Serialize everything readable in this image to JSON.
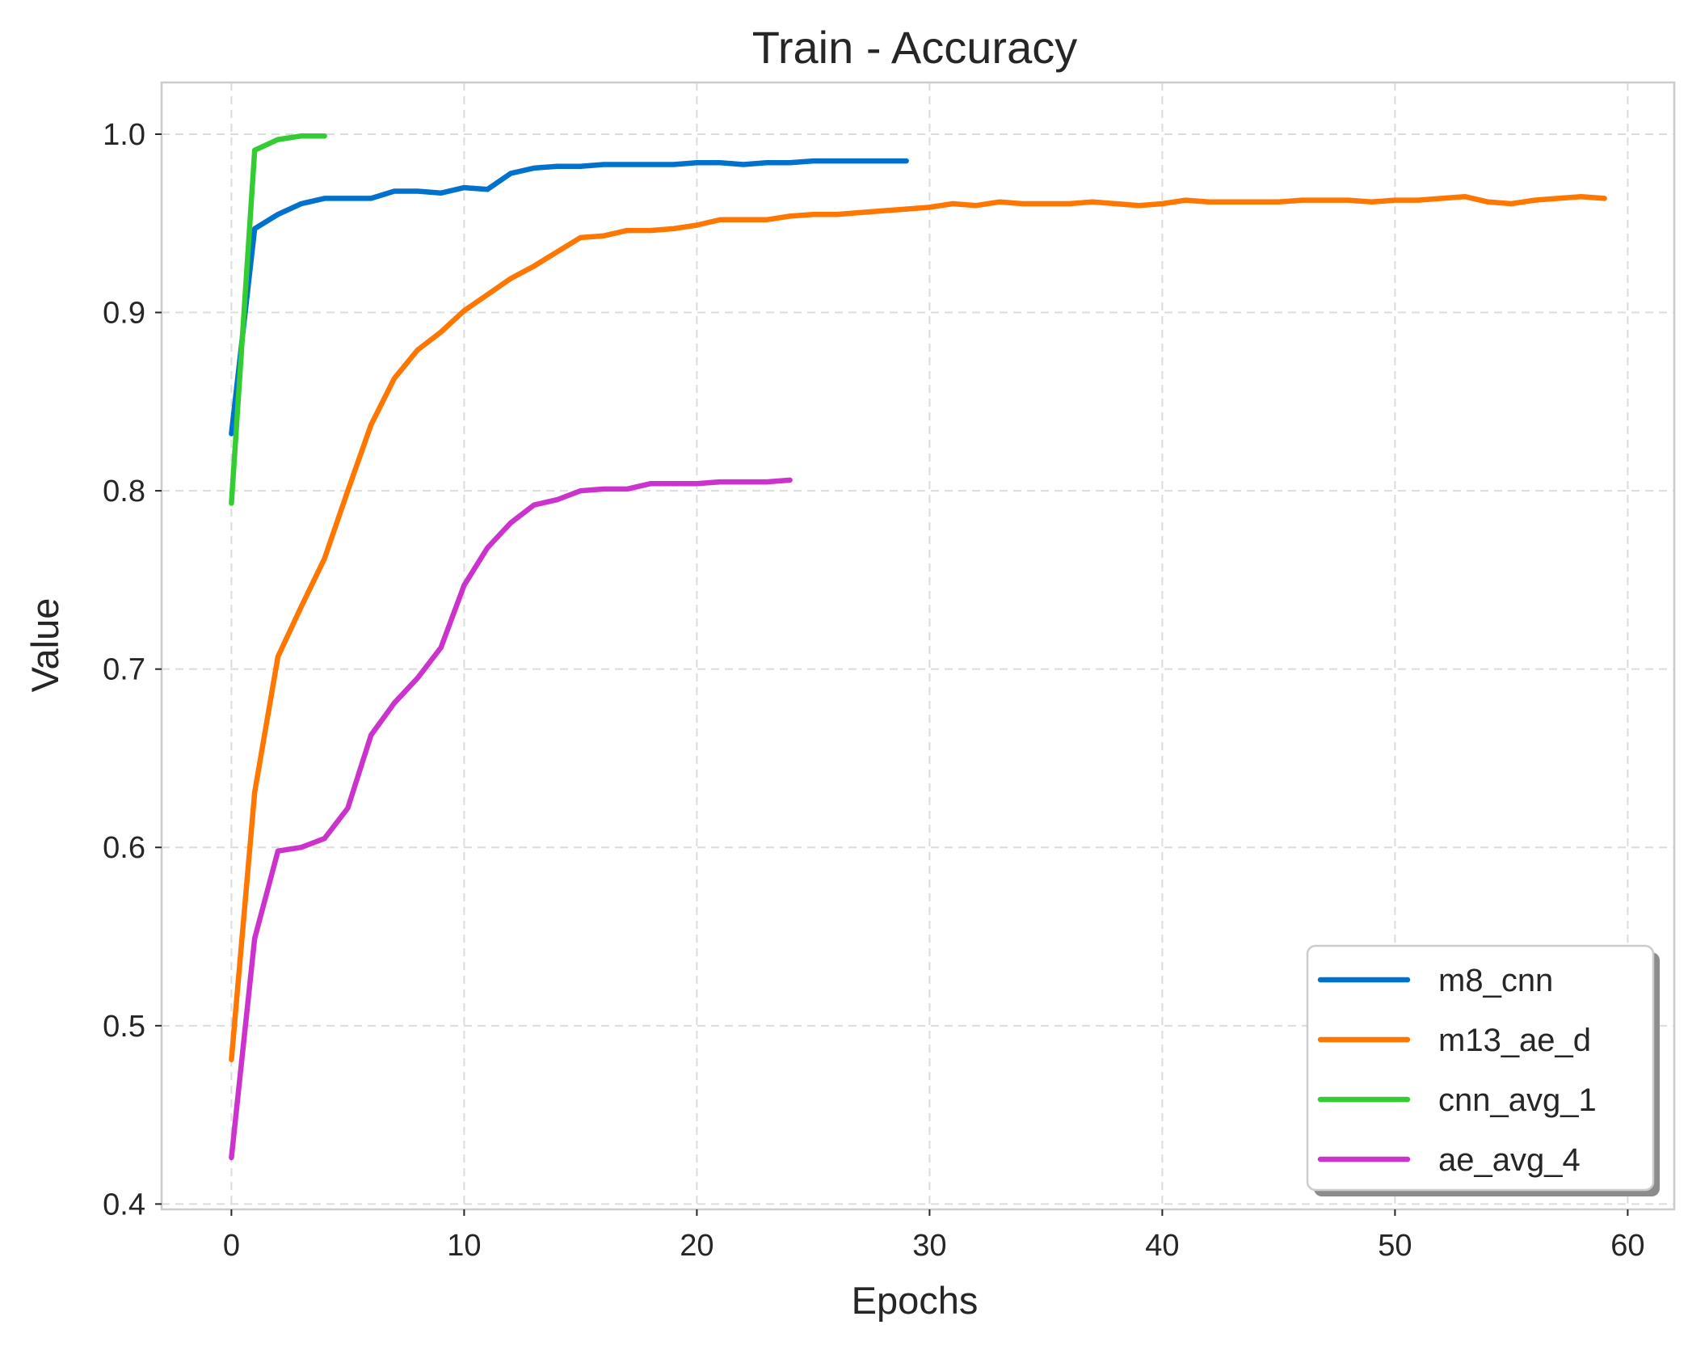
{
  "chart_data": {
    "type": "line",
    "title": "Train - Accuracy",
    "xlabel": "Epochs",
    "ylabel": "Value",
    "xlim": [
      -3,
      62
    ],
    "ylim": [
      0.397,
      1.029
    ],
    "xticks": [
      0,
      10,
      20,
      30,
      40,
      50,
      60
    ],
    "xtick_labels": [
      "0",
      "10",
      "20",
      "30",
      "40",
      "50",
      "60"
    ],
    "yticks": [
      0.4,
      0.5,
      0.6,
      0.7,
      0.8,
      0.9,
      1.0
    ],
    "ytick_labels": [
      "0.4",
      "0.5",
      "0.6",
      "0.7",
      "0.8",
      "0.9",
      "1.0"
    ],
    "grid": true,
    "legend_position": "lower-right",
    "series": [
      {
        "name": "m8_cnn",
        "color": "#0072CE",
        "x": [
          0,
          1,
          2,
          3,
          4,
          5,
          6,
          7,
          8,
          9,
          10,
          11,
          12,
          13,
          14,
          15,
          16,
          17,
          18,
          19,
          20,
          21,
          22,
          23,
          24,
          25,
          26,
          27,
          28,
          29
        ],
        "y": [
          0.832,
          0.947,
          0.955,
          0.961,
          0.964,
          0.964,
          0.964,
          0.968,
          0.968,
          0.967,
          0.97,
          0.969,
          0.978,
          0.981,
          0.982,
          0.982,
          0.983,
          0.983,
          0.983,
          0.983,
          0.984,
          0.984,
          0.983,
          0.984,
          0.984,
          0.985,
          0.985,
          0.985,
          0.985,
          0.985
        ]
      },
      {
        "name": "m13_ae_d",
        "color": "#FF7700",
        "x": [
          0,
          1,
          2,
          3,
          4,
          5,
          6,
          7,
          8,
          9,
          10,
          11,
          12,
          13,
          14,
          15,
          16,
          17,
          18,
          19,
          20,
          21,
          22,
          23,
          24,
          25,
          26,
          27,
          28,
          29,
          30,
          31,
          32,
          33,
          34,
          35,
          36,
          37,
          38,
          39,
          40,
          41,
          42,
          43,
          44,
          45,
          46,
          47,
          48,
          49,
          50,
          51,
          52,
          53,
          54,
          55,
          56,
          57,
          58,
          59
        ],
        "y": [
          0.481,
          0.631,
          0.707,
          0.735,
          0.762,
          0.8,
          0.837,
          0.863,
          0.879,
          0.889,
          0.901,
          0.91,
          0.919,
          0.926,
          0.934,
          0.942,
          0.943,
          0.946,
          0.946,
          0.947,
          0.949,
          0.952,
          0.952,
          0.952,
          0.954,
          0.955,
          0.955,
          0.956,
          0.957,
          0.958,
          0.959,
          0.961,
          0.96,
          0.962,
          0.961,
          0.961,
          0.961,
          0.962,
          0.961,
          0.96,
          0.961,
          0.963,
          0.962,
          0.962,
          0.962,
          0.962,
          0.963,
          0.963,
          0.963,
          0.962,
          0.963,
          0.963,
          0.964,
          0.965,
          0.962,
          0.961,
          0.963,
          0.964,
          0.965,
          0.964
        ]
      },
      {
        "name": "cnn_avg_1",
        "color": "#33CC33",
        "x": [
          0,
          1,
          2,
          3,
          4
        ],
        "y": [
          0.793,
          0.991,
          0.997,
          0.999,
          0.999
        ]
      },
      {
        "name": "ae_avg_4",
        "color": "#CC33CC",
        "x": [
          0,
          1,
          2,
          3,
          4,
          5,
          6,
          7,
          8,
          9,
          10,
          11,
          12,
          13,
          14,
          15,
          16,
          17,
          18,
          19,
          20,
          21,
          22,
          23,
          24
        ],
        "y": [
          0.426,
          0.549,
          0.598,
          0.6,
          0.605,
          0.622,
          0.663,
          0.681,
          0.695,
          0.712,
          0.747,
          0.768,
          0.782,
          0.792,
          0.795,
          0.8,
          0.801,
          0.801,
          0.804,
          0.804,
          0.804,
          0.805,
          0.805,
          0.805,
          0.806
        ]
      }
    ]
  }
}
